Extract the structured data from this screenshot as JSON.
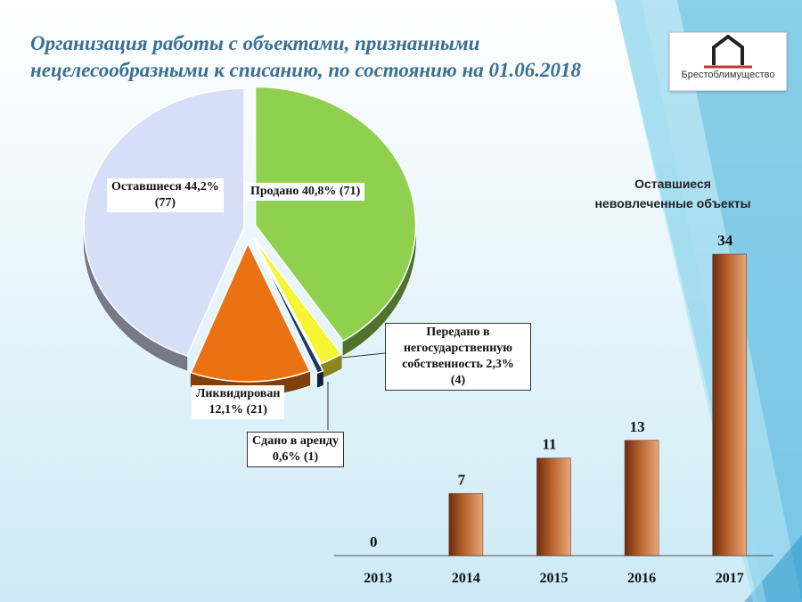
{
  "title_line1": "Организация работы с объектами, признанными",
  "title_line2": "нецелесообразными к списанию, по состоянию на 01.06.2018",
  "logo_text": "Брестоблимущество",
  "colors": {
    "sold": "#8fd14f",
    "transferred": "#f5f535",
    "rented": "#1f3864",
    "liquidated": "#ea7212",
    "remaining": "#d6def8",
    "bar": "#b8642e",
    "title": "#3a6f96"
  },
  "labels": {
    "remaining": [
      "Оставшиеся 44,2%",
      "(77)"
    ],
    "sold": "Продано 40,8% (71)",
    "transferred": [
      "Передано в",
      "негосударственную",
      "собственность 2,3%",
      "(4)"
    ],
    "liquidated": [
      "Ликвидирован",
      "12,1% (21)"
    ],
    "rented": [
      "Сдано в аренду",
      "0,6% (1)"
    ]
  },
  "chart_data": [
    {
      "type": "pie",
      "slices": [
        {
          "key": "sold",
          "percent": 40.8,
          "count": 71
        },
        {
          "key": "transferred",
          "percent": 2.3,
          "count": 4
        },
        {
          "key": "rented",
          "percent": 0.6,
          "count": 1
        },
        {
          "key": "liquidated",
          "percent": 12.1,
          "count": 21
        },
        {
          "key": "remaining",
          "percent": 44.2,
          "count": 77
        }
      ]
    },
    {
      "type": "bar",
      "title": [
        "Оставшиеся",
        "невовлеченные объекты"
      ],
      "categories": [
        "2013",
        "2014",
        "2015",
        "2016",
        "2017"
      ],
      "values": [
        0,
        7,
        11,
        13,
        34
      ]
    }
  ]
}
